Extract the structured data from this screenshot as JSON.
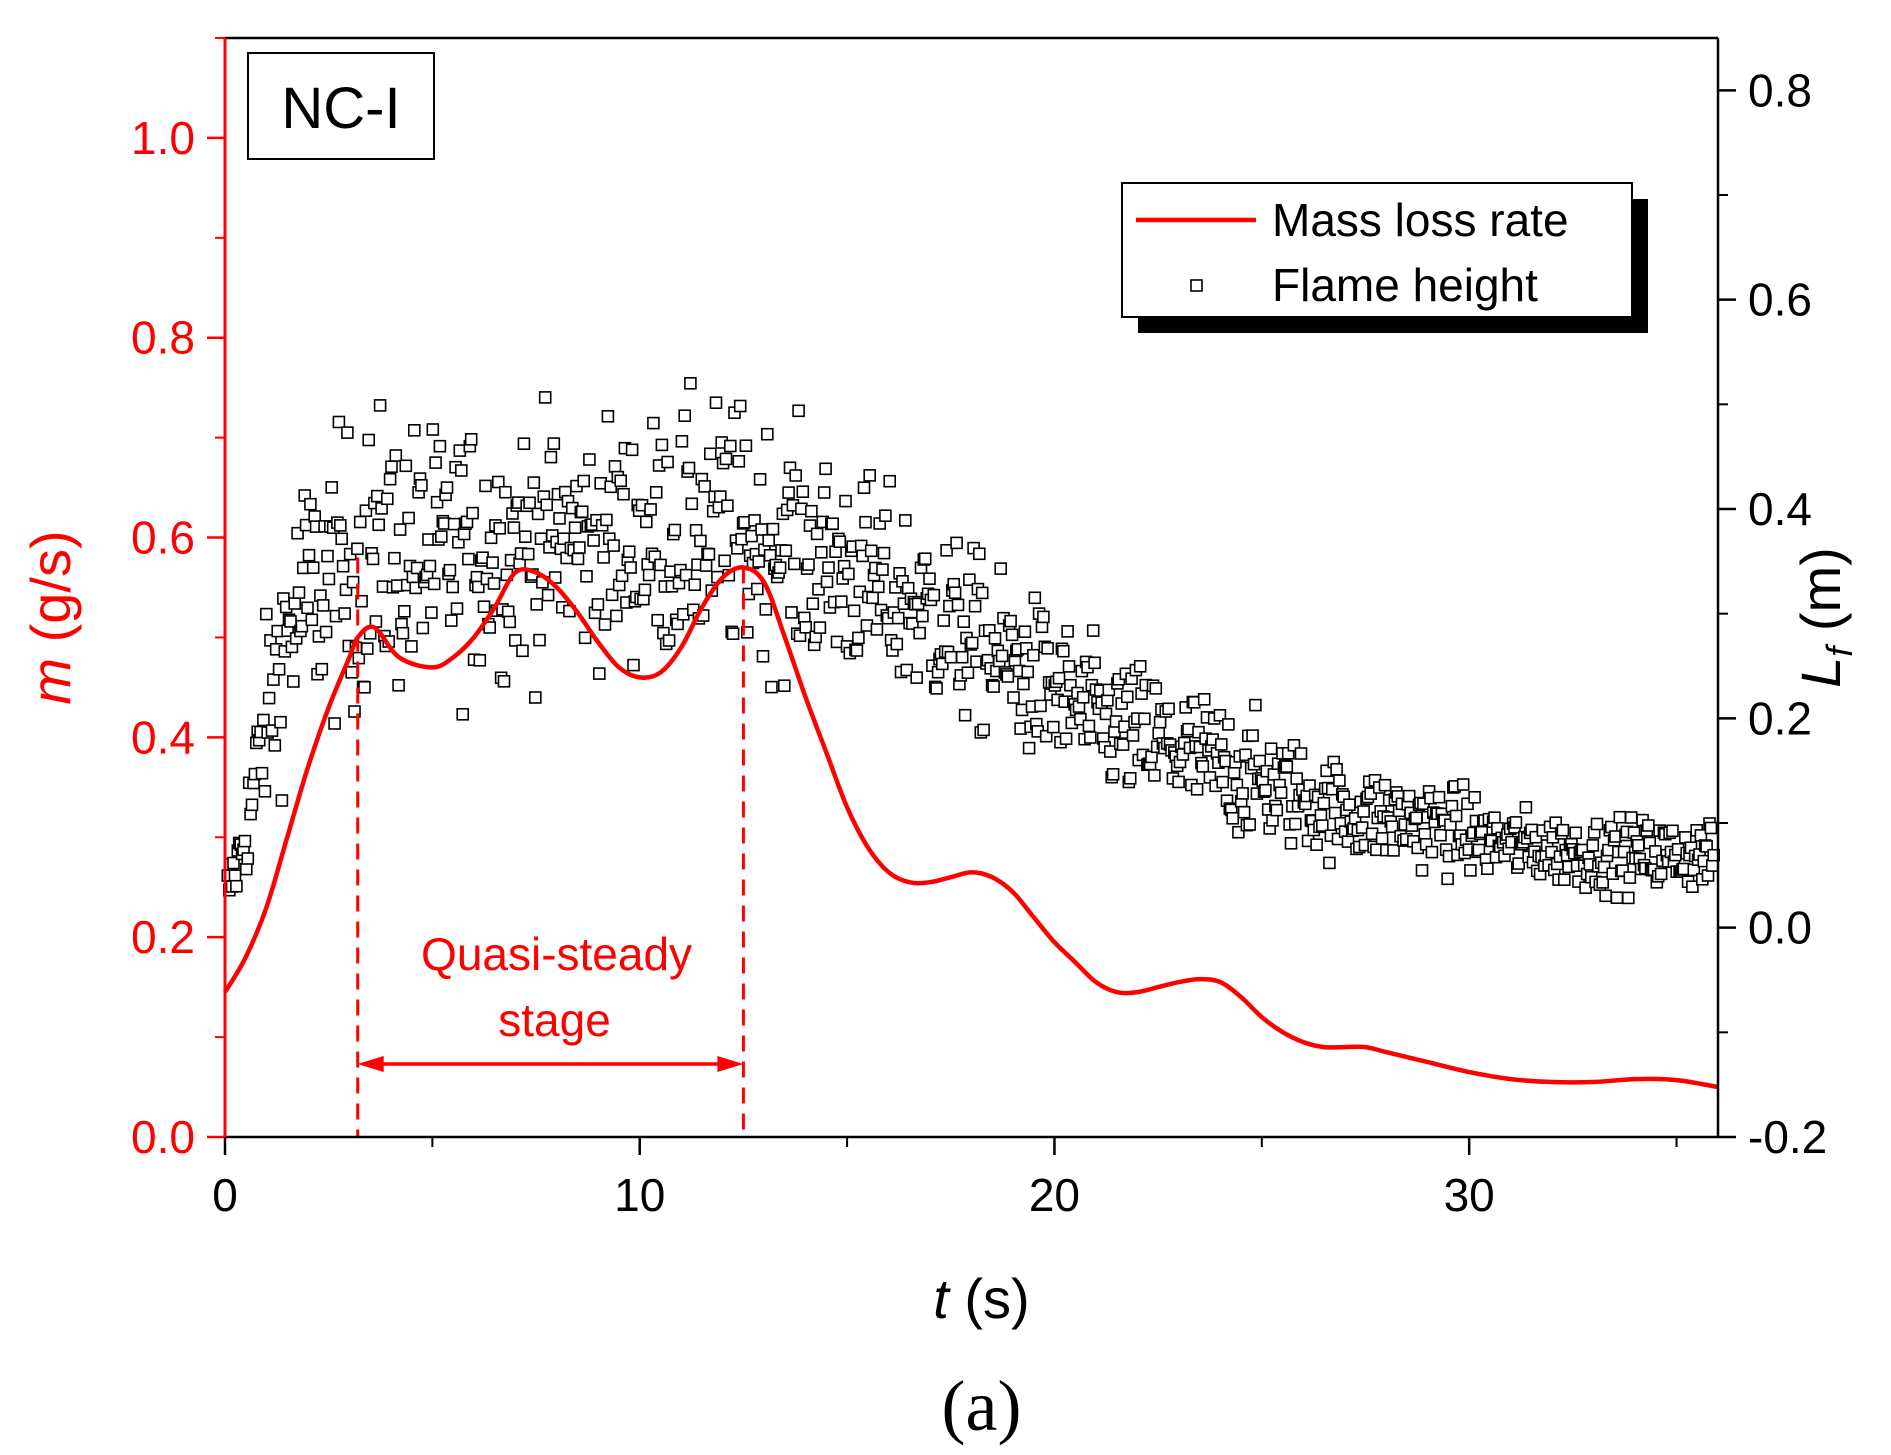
{
  "chart_data": {
    "type": "line",
    "panel_label": "(a)",
    "inset_label": "NC-I",
    "xlabel": {
      "symbol": "t",
      "unit": "(s)"
    },
    "ylabel_left": {
      "symbol": "m",
      "unit": "(g/s)"
    },
    "ylabel_right": {
      "symbol": "L",
      "subscript": "f",
      "unit": "(m)"
    },
    "xlim": [
      0,
      36
    ],
    "ylim_left": [
      0,
      1.1
    ],
    "ylim_right": [
      -0.2,
      0.85
    ],
    "xticks": [
      0,
      10,
      20,
      30
    ],
    "xtick_labels": [
      "0",
      "10",
      "20",
      "30"
    ],
    "yticks_left": [
      0,
      0.2,
      0.4,
      0.6,
      0.8,
      1.0
    ],
    "ytick_labels_left": [
      "0.0",
      "0.2",
      "0.4",
      "0.6",
      "0.8",
      "1.0"
    ],
    "yticks_right": [
      -0.2,
      0,
      0.2,
      0.4,
      0.6,
      0.8
    ],
    "ytick_labels_right": [
      "-0.2",
      "0.0",
      "0.2",
      "0.4",
      "0.6",
      "0.8"
    ],
    "legend": {
      "position": "top-right",
      "entries": [
        "Mass loss rate",
        "Flame height"
      ]
    },
    "annotation": {
      "lines": [
        "Quasi-steady",
        "stage"
      ],
      "x_start": 3.2,
      "x_end": 12.5
    },
    "colors": {
      "mass_loss": "#ff0000",
      "flame": "#000000",
      "left_axis": "#ff0000",
      "right_axis": "#000000"
    },
    "series": [
      {
        "name": "Mass loss rate",
        "axis": "left",
        "style": "line",
        "x": [
          0,
          0.5,
          1.0,
          1.5,
          2.0,
          2.5,
          3.0,
          3.2,
          3.6,
          4.2,
          5.0,
          5.5,
          6.0,
          6.5,
          7.0,
          7.5,
          8.0,
          8.5,
          9.0,
          9.5,
          10.0,
          10.5,
          11.0,
          11.5,
          12.0,
          12.5,
          13.0,
          13.5,
          14.0,
          14.5,
          15.0,
          15.5,
          16.0,
          16.5,
          17.0,
          17.5,
          18.0,
          18.5,
          19.0,
          19.5,
          20.0,
          20.5,
          21.0,
          21.5,
          22.0,
          22.5,
          23.0,
          23.5,
          24.0,
          24.5,
          25.0,
          25.5,
          26.0,
          26.5,
          27.0,
          27.5,
          28.0,
          29.0,
          30.0,
          31.0,
          32.0,
          33.0,
          34.0,
          35.0,
          36.0
        ],
        "y": [
          0.145,
          0.18,
          0.23,
          0.3,
          0.37,
          0.43,
          0.48,
          0.5,
          0.51,
          0.48,
          0.47,
          0.48,
          0.5,
          0.53,
          0.565,
          0.565,
          0.55,
          0.525,
          0.495,
          0.47,
          0.46,
          0.465,
          0.49,
          0.53,
          0.56,
          0.57,
          0.555,
          0.5,
          0.44,
          0.385,
          0.33,
          0.29,
          0.265,
          0.255,
          0.255,
          0.26,
          0.265,
          0.26,
          0.245,
          0.22,
          0.195,
          0.175,
          0.155,
          0.145,
          0.145,
          0.15,
          0.155,
          0.158,
          0.155,
          0.14,
          0.12,
          0.105,
          0.095,
          0.09,
          0.09,
          0.09,
          0.085,
          0.075,
          0.065,
          0.058,
          0.055,
          0.055,
          0.058,
          0.057,
          0.05
        ]
      },
      {
        "name": "Flame height",
        "axis": "right",
        "style": "scatter",
        "trend_x": [
          0,
          0.3,
          0.6,
          1.0,
          1.5,
          2.0,
          3.0,
          4.0,
          5.0,
          6.0,
          8.0,
          10.0,
          12.0,
          13.0,
          15.0,
          17.0,
          19.0,
          21.0,
          23.0,
          25.0,
          27.0,
          29.0,
          31.0,
          33.0,
          36.0
        ],
        "trend_y": [
          0.03,
          0.06,
          0.11,
          0.2,
          0.28,
          0.32,
          0.34,
          0.36,
          0.35,
          0.36,
          0.37,
          0.37,
          0.38,
          0.37,
          0.34,
          0.3,
          0.25,
          0.2,
          0.17,
          0.14,
          0.11,
          0.1,
          0.08,
          0.07,
          0.07
        ],
        "spread": [
          0.02,
          0.03,
          0.05,
          0.08,
          0.1,
          0.11,
          0.12,
          0.12,
          0.11,
          0.11,
          0.1,
          0.1,
          0.11,
          0.1,
          0.09,
          0.08,
          0.07,
          0.06,
          0.06,
          0.05,
          0.04,
          0.04,
          0.03,
          0.03,
          0.03
        ],
        "n_points": 1050
      }
    ]
  }
}
